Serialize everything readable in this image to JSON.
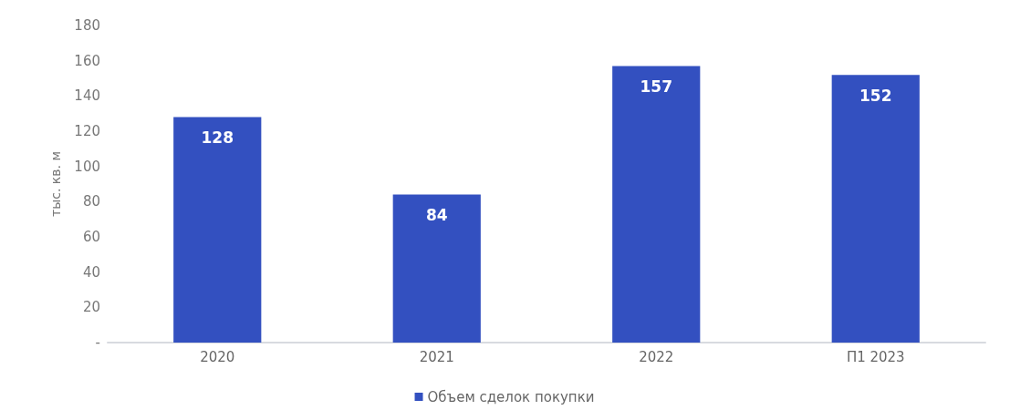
{
  "chart_data": {
    "type": "bar",
    "ylabel": "тыс. кв. м",
    "categories": [
      "2020",
      "2021",
      "2022",
      "П1 2023"
    ],
    "series": [
      {
        "name": "Объем сделок покупки",
        "color": "#3350c0",
        "values": [
          128,
          84,
          157,
          152
        ]
      }
    ],
    "ylim": [
      0,
      180
    ],
    "yticks": [
      {
        "value": 0,
        "label": "-"
      },
      20,
      40,
      60,
      80,
      100,
      120,
      140,
      160,
      180
    ],
    "grid": false,
    "legend": "bottom",
    "data_labels": true
  }
}
